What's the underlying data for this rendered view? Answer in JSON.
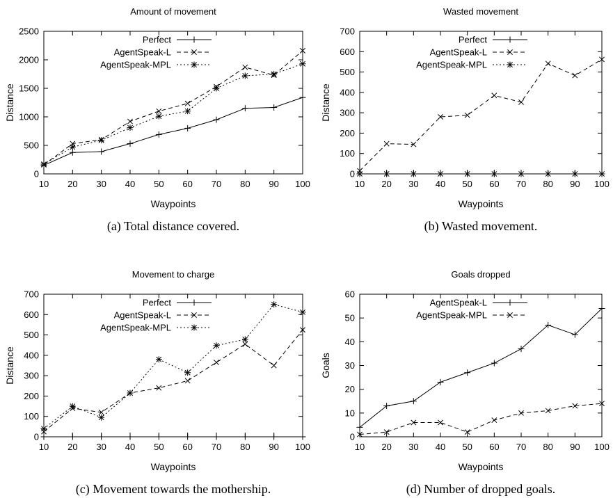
{
  "chart_data": [
    {
      "type": "line",
      "title": "Amount of movement",
      "xlabel": "Waypoints",
      "ylabel": "Distance",
      "caption": "(a) Total distance covered.",
      "x": [
        10,
        20,
        30,
        40,
        50,
        60,
        70,
        80,
        90,
        100
      ],
      "xlim": [
        10,
        100
      ],
      "ylim": [
        0,
        2500
      ],
      "yticks": [
        0,
        500,
        1000,
        1500,
        2000,
        2500
      ],
      "legend_position": "top-left",
      "series": [
        {
          "name": "Perfect",
          "marker": "plus",
          "dash": "solid",
          "values": [
            150,
            375,
            390,
            530,
            690,
            800,
            950,
            1150,
            1165,
            1340
          ]
        },
        {
          "name": "AgentSpeak-L",
          "marker": "cross",
          "dash": "dashed",
          "values": [
            160,
            530,
            600,
            920,
            1100,
            1235,
            1530,
            1870,
            1730,
            2160
          ]
        },
        {
          "name": "AgentSpeak-MPL",
          "marker": "star",
          "dash": "dotted",
          "values": [
            170,
            470,
            590,
            810,
            1010,
            1100,
            1500,
            1720,
            1750,
            1930
          ]
        }
      ]
    },
    {
      "type": "line",
      "title": "Wasted movement",
      "xlabel": "Waypoints",
      "ylabel": "Distance",
      "caption": "(b) Wasted movement.",
      "x": [
        10,
        20,
        30,
        40,
        50,
        60,
        70,
        80,
        90,
        100
      ],
      "xlim": [
        10,
        100
      ],
      "ylim": [
        0,
        700
      ],
      "yticks": [
        0,
        100,
        200,
        300,
        400,
        500,
        600,
        700
      ],
      "legend_position": "top-left",
      "series": [
        {
          "name": "Perfect",
          "marker": "plus",
          "dash": "solid",
          "values": [
            0,
            0,
            0,
            0,
            0,
            0,
            0,
            0,
            0,
            0
          ]
        },
        {
          "name": "AgentSpeak-L",
          "marker": "cross",
          "dash": "dashed",
          "values": [
            15,
            148,
            145,
            280,
            288,
            385,
            352,
            542,
            483,
            562
          ]
        },
        {
          "name": "AgentSpeak-MPL",
          "marker": "star",
          "dash": "dotted",
          "values": [
            0,
            0,
            0,
            0,
            0,
            0,
            0,
            0,
            0,
            0
          ]
        }
      ]
    },
    {
      "type": "line",
      "title": "Movement to charge",
      "xlabel": "Waypoints",
      "ylabel": "Distance",
      "caption": "(c) Movement towards the mothership.",
      "x": [
        10,
        20,
        30,
        40,
        50,
        60,
        70,
        80,
        90,
        100
      ],
      "xlim": [
        10,
        100
      ],
      "ylim": [
        0,
        700
      ],
      "yticks": [
        0,
        100,
        200,
        300,
        400,
        500,
        600,
        700
      ],
      "legend_position": "top-left",
      "series": [
        {
          "name": "Perfect",
          "marker": "plus",
          "dash": "solid",
          "values": [
            0,
            0,
            0,
            0,
            0,
            0,
            0,
            0,
            0,
            0
          ]
        },
        {
          "name": "AgentSpeak-L",
          "marker": "cross",
          "dash": "dashed",
          "values": [
            25,
            140,
            120,
            215,
            240,
            275,
            365,
            455,
            350,
            525
          ]
        },
        {
          "name": "AgentSpeak-MPL",
          "marker": "star",
          "dash": "dotted",
          "values": [
            40,
            150,
            95,
            215,
            380,
            315,
            448,
            478,
            650,
            612
          ]
        }
      ]
    },
    {
      "type": "line",
      "title": "Goals dropped",
      "xlabel": "Waypoints",
      "ylabel": "Goals",
      "caption": "(d) Number of dropped goals.",
      "x": [
        10,
        20,
        30,
        40,
        50,
        60,
        70,
        80,
        90,
        100
      ],
      "xlim": [
        10,
        100
      ],
      "ylim": [
        0,
        60
      ],
      "yticks": [
        0,
        10,
        20,
        30,
        40,
        50,
        60
      ],
      "legend_position": "top-left",
      "series": [
        {
          "name": "AgentSpeak-L",
          "marker": "plus",
          "dash": "solid",
          "values": [
            4,
            13,
            15,
            23,
            27,
            31,
            37,
            47,
            43,
            54
          ]
        },
        {
          "name": "AgentSpeak-MPL",
          "marker": "cross",
          "dash": "dashed",
          "values": [
            1,
            2,
            6,
            6,
            2,
            7,
            10,
            11,
            13,
            14
          ]
        }
      ]
    }
  ]
}
